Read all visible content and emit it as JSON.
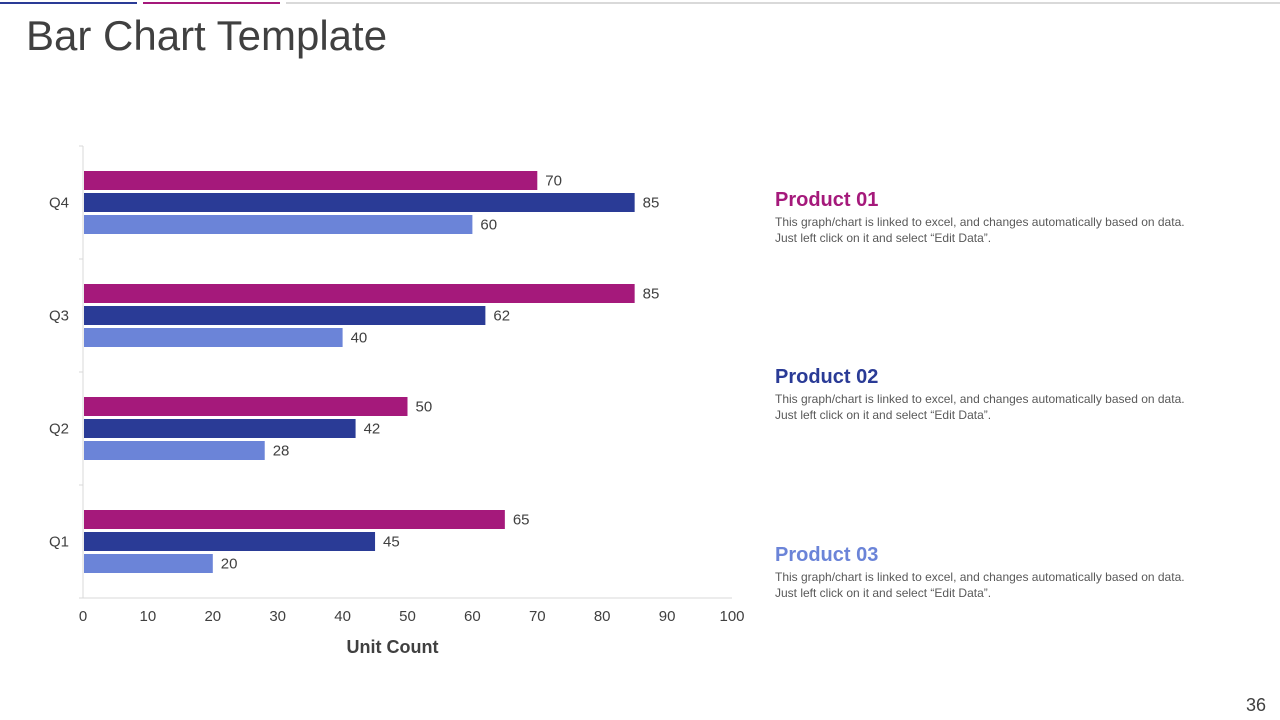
{
  "header": {
    "title": "Bar Chart Template"
  },
  "page_number": "36",
  "colors": {
    "product_01": "#a5197b",
    "product_02": "#2a3b96",
    "product_03": "#6b84d8",
    "axis": "#d9d9d9",
    "text": "#404040"
  },
  "products": [
    {
      "title": "Product 01",
      "line1": "This graph/chart is linked to excel, and changes automatically based on data.",
      "line2": "Just left click on it and select “Edit Data”."
    },
    {
      "title": "Product 02",
      "line1": "This graph/chart is linked to excel, and changes automatically based on data.",
      "line2": "Just left click on it and select “Edit Data”."
    },
    {
      "title": "Product 03",
      "line1": "This graph/chart is linked to excel, and changes automatically based on data.",
      "line2": "Just left click on it and select “Edit Data”."
    }
  ],
  "chart_data": {
    "type": "bar",
    "orientation": "horizontal",
    "title": "",
    "xlabel": "Unit Count",
    "ylabel": "",
    "categories": [
      "Q1",
      "Q2",
      "Q3",
      "Q4"
    ],
    "series": [
      {
        "name": "Product 01",
        "values": [
          65,
          50,
          85,
          70
        ]
      },
      {
        "name": "Product 02",
        "values": [
          45,
          42,
          62,
          85
        ]
      },
      {
        "name": "Product 03",
        "values": [
          20,
          28,
          40,
          60
        ]
      }
    ],
    "xlim": [
      0,
      100
    ],
    "xticks": [
      0,
      10,
      20,
      30,
      40,
      50,
      60,
      70,
      80,
      90,
      100
    ],
    "grid": false,
    "data_labels": true
  }
}
